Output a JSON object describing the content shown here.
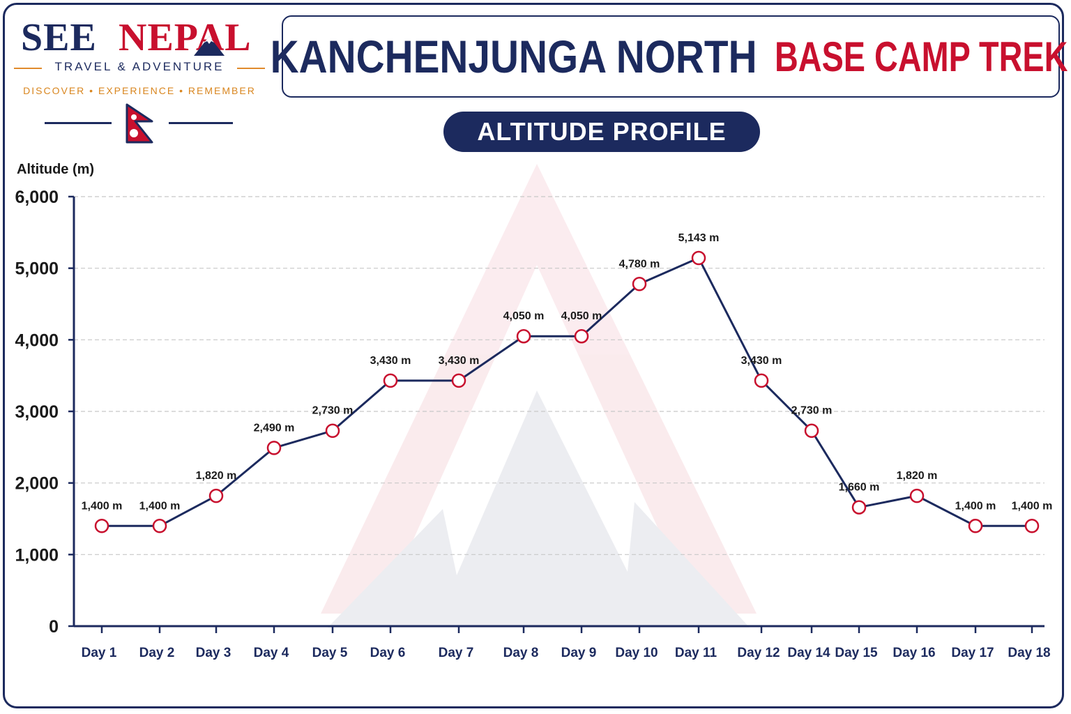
{
  "logo": {
    "word1": "SEE",
    "word2": "NEPAL",
    "tagline": "TRAVEL & ADVENTURE",
    "motto": "DISCOVER • EXPERIENCE • REMEMBER"
  },
  "title": {
    "main": "KANCHENJUNGA NORTH",
    "accent": "BASE CAMP TREK"
  },
  "subtitle": "ALTITUDE PROFILE",
  "colors": {
    "navy": "#1c2a5e",
    "red": "#c8102e",
    "orange": "#d9861f",
    "grid": "#c8c8c8"
  },
  "chart_data": {
    "type": "line",
    "ylabel": "Altitude (m)",
    "xlabel": "",
    "ylim": [
      0,
      6000
    ],
    "yticks": [
      "0",
      "1,000",
      "2,000",
      "3,000",
      "4,000",
      "5,000",
      "6,000"
    ],
    "ytick_values": [
      0,
      1000,
      2000,
      3000,
      4000,
      5000,
      6000
    ],
    "grid": true,
    "categories": [
      "Day 1",
      "Day 2",
      "Day 3",
      "Day 4",
      "Day 5",
      "Day 6",
      "Day 7",
      "Day 8",
      "Day 9",
      "Day 10",
      "Day 11",
      "Day 12",
      "Day 14",
      "Day 15",
      "Day 16",
      "Day 17",
      "Day 18"
    ],
    "series": [
      {
        "values": [
          1400,
          1400,
          1820,
          2490,
          2730,
          3430,
          3430,
          4050,
          4050,
          4780,
          5143,
          3430,
          2730,
          1660,
          1820,
          1400,
          1400
        ],
        "labels": [
          "1,400 m",
          "1,400 m",
          "1,820 m",
          "2,490 m",
          "2,730 m",
          "3,430 m",
          "3,430 m",
          "4,050 m",
          "4,050 m",
          "4,780 m",
          "5,143 m",
          "3,430 m",
          "2,730 m",
          "1,660 m",
          "1,820 m",
          "1,400 m",
          "1,400 m"
        ]
      }
    ]
  }
}
